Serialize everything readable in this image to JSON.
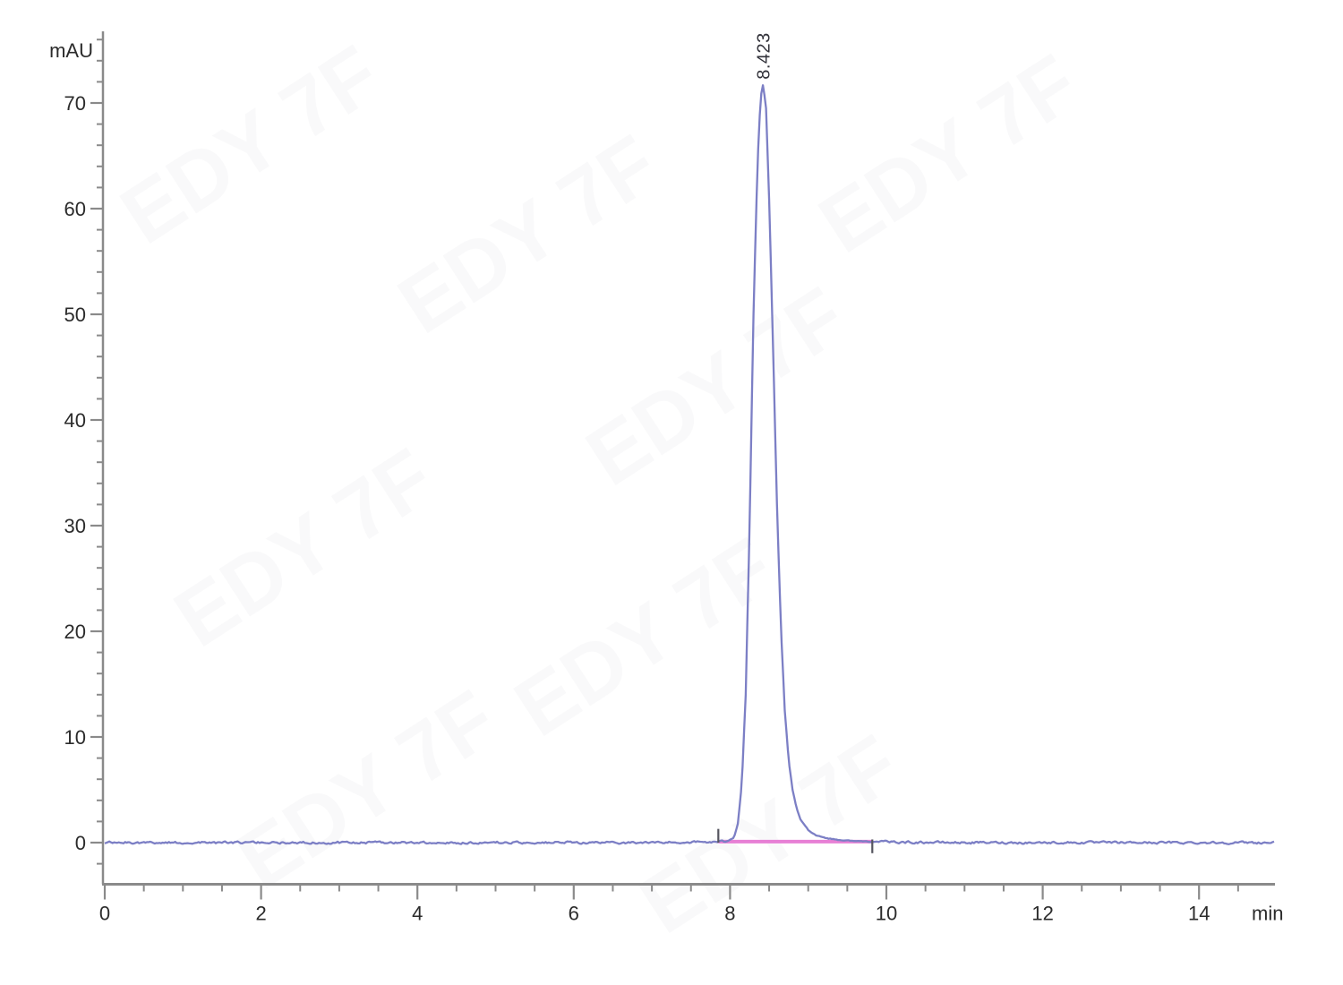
{
  "watermark": {
    "text": "EDY 7F"
  },
  "chart_data": {
    "type": "line",
    "title": "",
    "xlabel": "min",
    "ylabel": "mAU",
    "xlim": [
      0,
      15
    ],
    "ylim": [
      -4,
      77
    ],
    "x_major_ticks": [
      0,
      2,
      4,
      6,
      8,
      10,
      12,
      14
    ],
    "x_minor_step": 0.5,
    "y_major_ticks": [
      0,
      10,
      20,
      30,
      40,
      50,
      60,
      70
    ],
    "y_minor_step": 2,
    "y_minor_min": -2,
    "y_minor_max": 76,
    "grid": false,
    "legend": null,
    "trace_color": "#7c7fc5",
    "axis_color": "#8a8a8a",
    "label_color": "#2b2b2b",
    "noise_amplitude_mau": 0.18,
    "series": [
      {
        "name": "UV absorbance trace",
        "points": [
          [
            0.0,
            0.0
          ],
          [
            1.0,
            0.0
          ],
          [
            2.0,
            0.0
          ],
          [
            3.0,
            0.0
          ],
          [
            4.0,
            0.0
          ],
          [
            5.0,
            0.0
          ],
          [
            6.0,
            0.0
          ],
          [
            7.0,
            0.0
          ],
          [
            7.6,
            0.05
          ],
          [
            7.8,
            0.05
          ],
          [
            7.95,
            0.1
          ],
          [
            8.05,
            0.5
          ],
          [
            8.1,
            1.8
          ],
          [
            8.15,
            5.5
          ],
          [
            8.2,
            14.0
          ],
          [
            8.25,
            30.0
          ],
          [
            8.3,
            50.0
          ],
          [
            8.35,
            64.0
          ],
          [
            8.39,
            70.5
          ],
          [
            8.423,
            71.8
          ],
          [
            8.46,
            69.5
          ],
          [
            8.5,
            61.0
          ],
          [
            8.55,
            47.0
          ],
          [
            8.6,
            32.0
          ],
          [
            8.65,
            20.5
          ],
          [
            8.7,
            12.5
          ],
          [
            8.75,
            7.8
          ],
          [
            8.8,
            5.0
          ],
          [
            8.85,
            3.3
          ],
          [
            8.9,
            2.2
          ],
          [
            9.0,
            1.2
          ],
          [
            9.1,
            0.7
          ],
          [
            9.25,
            0.4
          ],
          [
            9.4,
            0.25
          ],
          [
            9.6,
            0.15
          ],
          [
            9.82,
            0.1
          ],
          [
            10.0,
            0.05
          ],
          [
            11.0,
            0.0
          ],
          [
            12.0,
            0.0
          ],
          [
            13.0,
            0.0
          ],
          [
            14.0,
            0.0
          ],
          [
            14.95,
            0.0
          ]
        ]
      }
    ],
    "peaks": [
      {
        "retention_time_min": 8.423,
        "label": "8.423",
        "height_mau": 71.8
      }
    ],
    "integration": {
      "start_min": 7.85,
      "end_min": 9.82,
      "baseline_mau": 0.1,
      "color": "#e77fd5",
      "marker_color": "#55555f"
    }
  }
}
